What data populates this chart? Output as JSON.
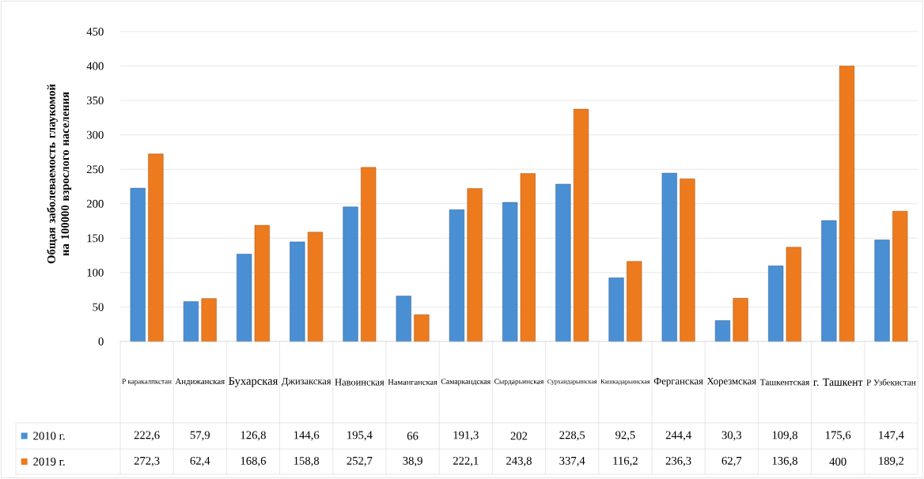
{
  "chart_data": {
    "type": "bar",
    "ylabel": "Общая заболеваемость глаукомой на 100000 взрослого населения",
    "categories": [
      "Р каракалпкстан",
      "Андижанская",
      "Бухарская",
      "Джизакская",
      "Навоинская",
      "Наманганская",
      "Самаркандская",
      "Сырдарьинская",
      "Сурхандарьинская",
      "Кашкадарьинская",
      "Ферганская",
      "Хорезмская",
      "Ташкентская",
      "г. Ташкент",
      "Р Узбекистан"
    ],
    "series": [
      {
        "name": "2010 г.",
        "color": "#4a8fd4",
        "values": [
          222.6,
          57.9,
          126.8,
          144.6,
          195.4,
          66,
          191.3,
          202,
          228.5,
          92.5,
          244.4,
          30.3,
          109.8,
          175.6,
          147.4
        ],
        "value_labels": [
          "222,6",
          "57,9",
          "126,8",
          "144,6",
          "195,4",
          "66",
          "191,3",
          "202",
          "228,5",
          "92,5",
          "244,4",
          "30,3",
          "109,8",
          "175,6",
          "147,4"
        ]
      },
      {
        "name": "2019 г.",
        "color": "#ee7a1e",
        "values": [
          272.3,
          62.4,
          168.6,
          158.8,
          252.7,
          38.9,
          222.1,
          243.8,
          337.4,
          116.2,
          236.3,
          62.7,
          136.8,
          400,
          189.2
        ],
        "value_labels": [
          "272,3",
          "62,4",
          "168,6",
          "158,8",
          "252,7",
          "38,9",
          "222,1",
          "243,8",
          "337,4",
          "116,2",
          "236,3",
          "62,7",
          "136,8",
          "400",
          "189,2"
        ]
      }
    ],
    "ylim": [
      0,
      450
    ],
    "yticks": [
      0,
      50,
      100,
      150,
      200,
      250,
      300,
      350,
      400,
      450
    ],
    "grid": "y",
    "legend": "bottom"
  }
}
